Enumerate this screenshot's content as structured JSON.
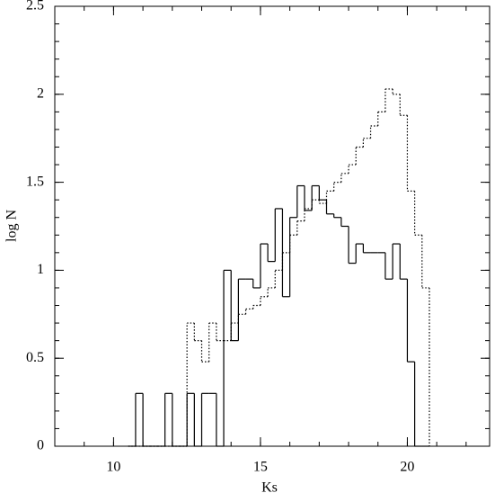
{
  "chart_data": {
    "type": "histogram-step",
    "xlabel": "Ks",
    "ylabel": "log N",
    "bins": [
      10.5,
      10.75,
      11,
      11.25,
      11.5,
      11.75,
      12,
      12.25,
      12.5,
      12.75,
      13,
      13.25,
      13.5,
      13.75,
      14,
      14.25,
      14.5,
      14.75,
      15,
      15.25,
      15.5,
      15.75,
      16,
      16.25,
      16.5,
      16.75,
      17,
      17.25,
      17.5,
      17.75,
      18,
      18.25,
      18.5,
      18.75,
      19,
      19.25,
      19.5,
      19.75,
      20,
      20.25,
      20.5,
      20.75
    ],
    "series": [
      {
        "style": "solid",
        "color": "#000000",
        "values": [
          0,
          0.3,
          0,
          0,
          0,
          0.3,
          0,
          0,
          0.3,
          0,
          0.3,
          0.3,
          0,
          1.0,
          0.6,
          0.95,
          0.95,
          0.9,
          1.15,
          1.05,
          1.35,
          0.85,
          1.3,
          1.48,
          1.34,
          1.48,
          1.4,
          1.32,
          1.3,
          1.25,
          1.04,
          1.15,
          1.1,
          1.1,
          1.1,
          0.95,
          1.15,
          0.95,
          0.48,
          0,
          0
        ]
      },
      {
        "style": "dotted",
        "color": "#000000",
        "values": [
          0,
          0,
          0,
          0,
          0,
          0,
          0,
          0,
          0.7,
          0.6,
          0.48,
          0.7,
          0.6,
          0.6,
          0.7,
          0.75,
          0.78,
          0.8,
          0.85,
          0.9,
          1.0,
          1.1,
          1.2,
          1.28,
          1.35,
          1.4,
          1.38,
          1.45,
          1.5,
          1.55,
          1.6,
          1.7,
          1.75,
          1.82,
          1.9,
          2.03,
          2.0,
          1.88,
          1.45,
          1.2,
          0.9
        ]
      }
    ],
    "xlim": [
      8,
      22.8
    ],
    "ylim": [
      0,
      2.5
    ],
    "xticks": [
      10,
      15,
      20
    ],
    "yticks": [
      0,
      0.5,
      1,
      1.5,
      2,
      2.5
    ]
  }
}
